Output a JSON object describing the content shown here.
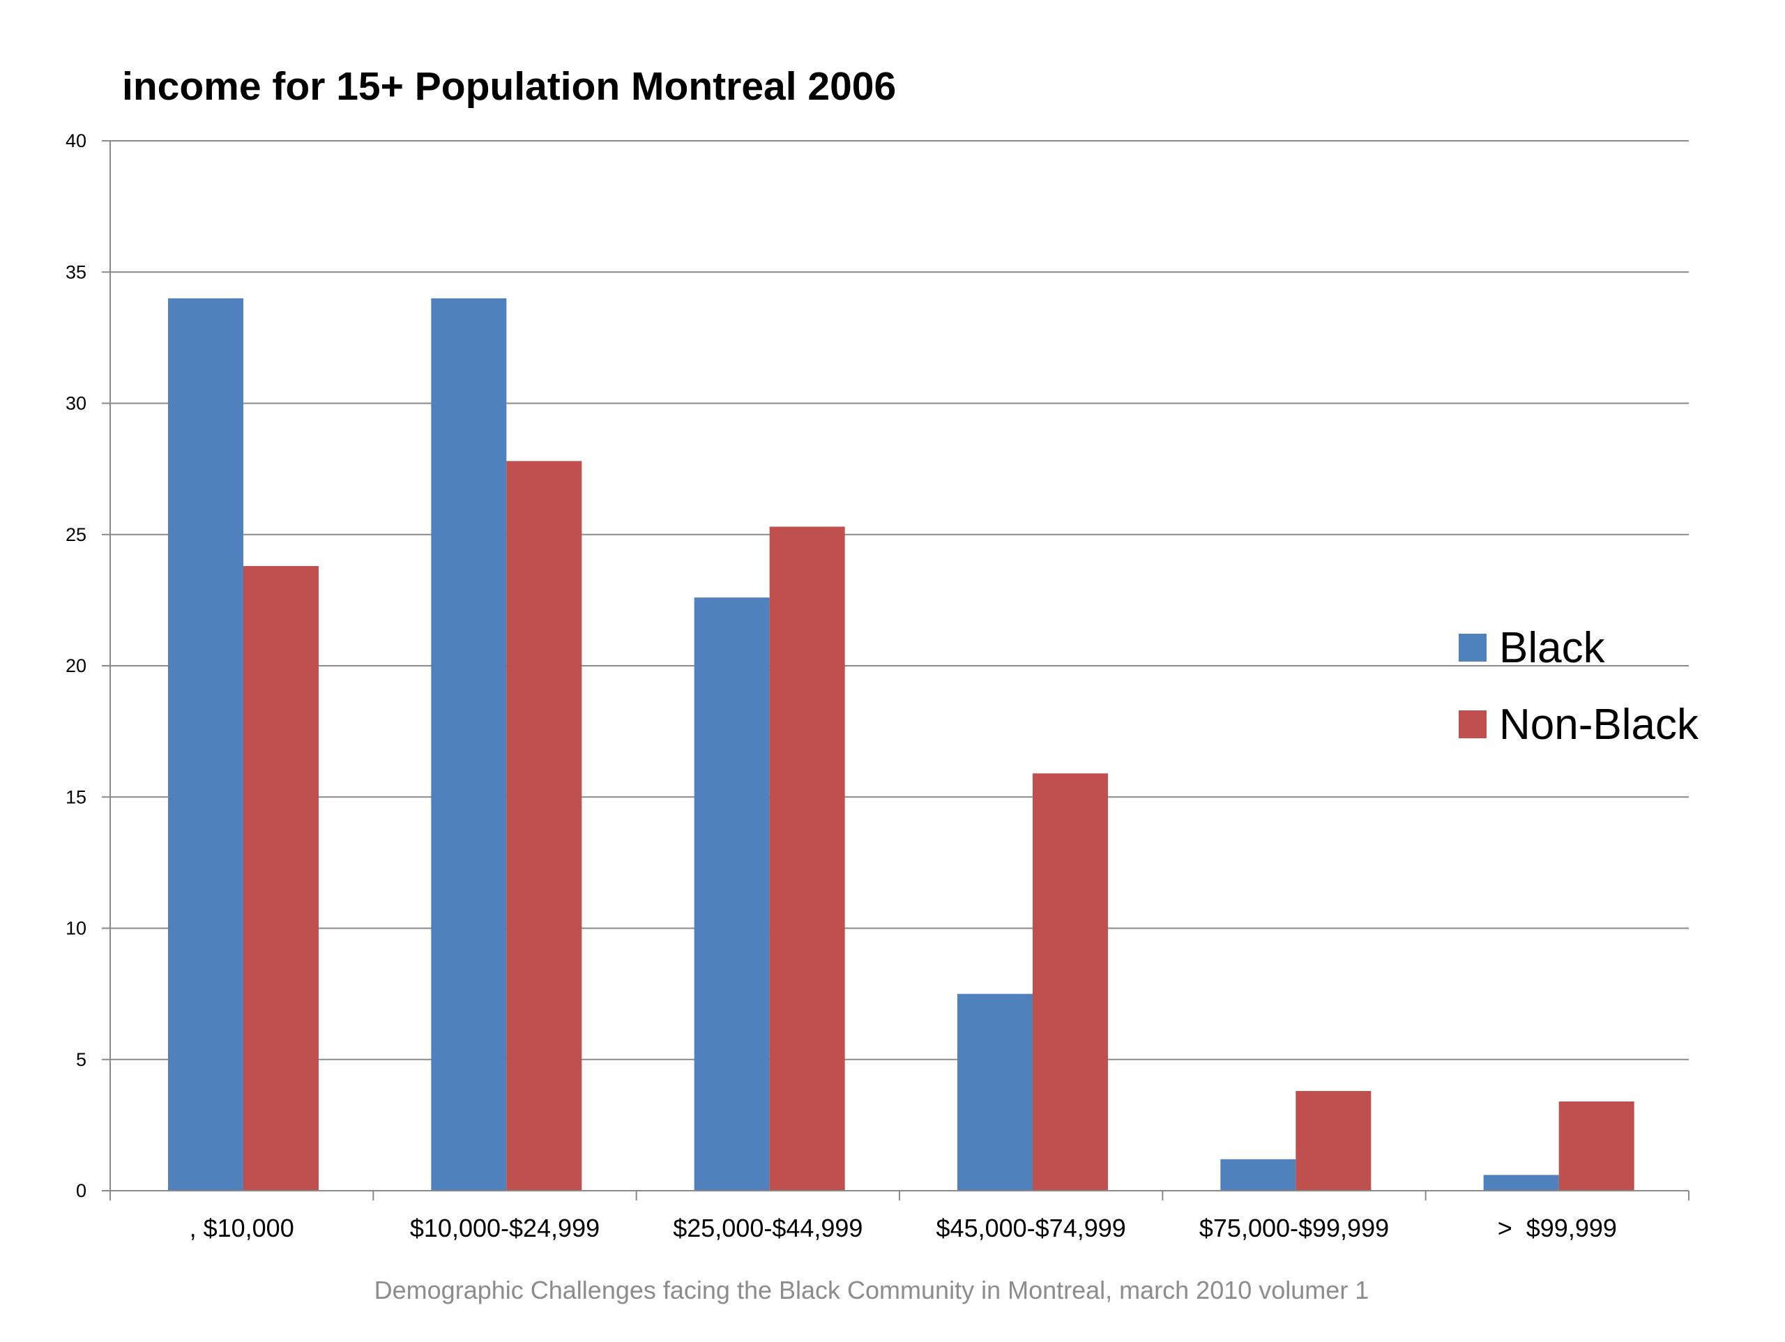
{
  "chart_data": {
    "type": "bar",
    "title": "income for 15+ Population Montreal  2006",
    "categories": [
      ", $10,000",
      "$10,000-$24,999",
      "$25,000-$44,999",
      "$45,000-$74,999",
      "$75,000-$99,999",
      ">  $99,999"
    ],
    "series": [
      {
        "name": "Black",
        "color": "#4f81bd",
        "values": [
          34.0,
          34.0,
          22.6,
          7.5,
          1.2,
          0.6
        ]
      },
      {
        "name": "Non-Black",
        "color": "#c0504d",
        "values": [
          23.8,
          27.8,
          25.3,
          15.9,
          3.8,
          3.4
        ]
      }
    ],
    "ylim": [
      0,
      40
    ],
    "yticks": [
      "0",
      "5",
      "10",
      "15",
      "20",
      "25",
      "30",
      "35",
      "40"
    ],
    "xlabel": "",
    "ylabel": "",
    "grid": true,
    "legend_position": "right"
  },
  "caption": "Demographic Challenges facing the Black Community in Montreal, march 2010 volumer 1"
}
